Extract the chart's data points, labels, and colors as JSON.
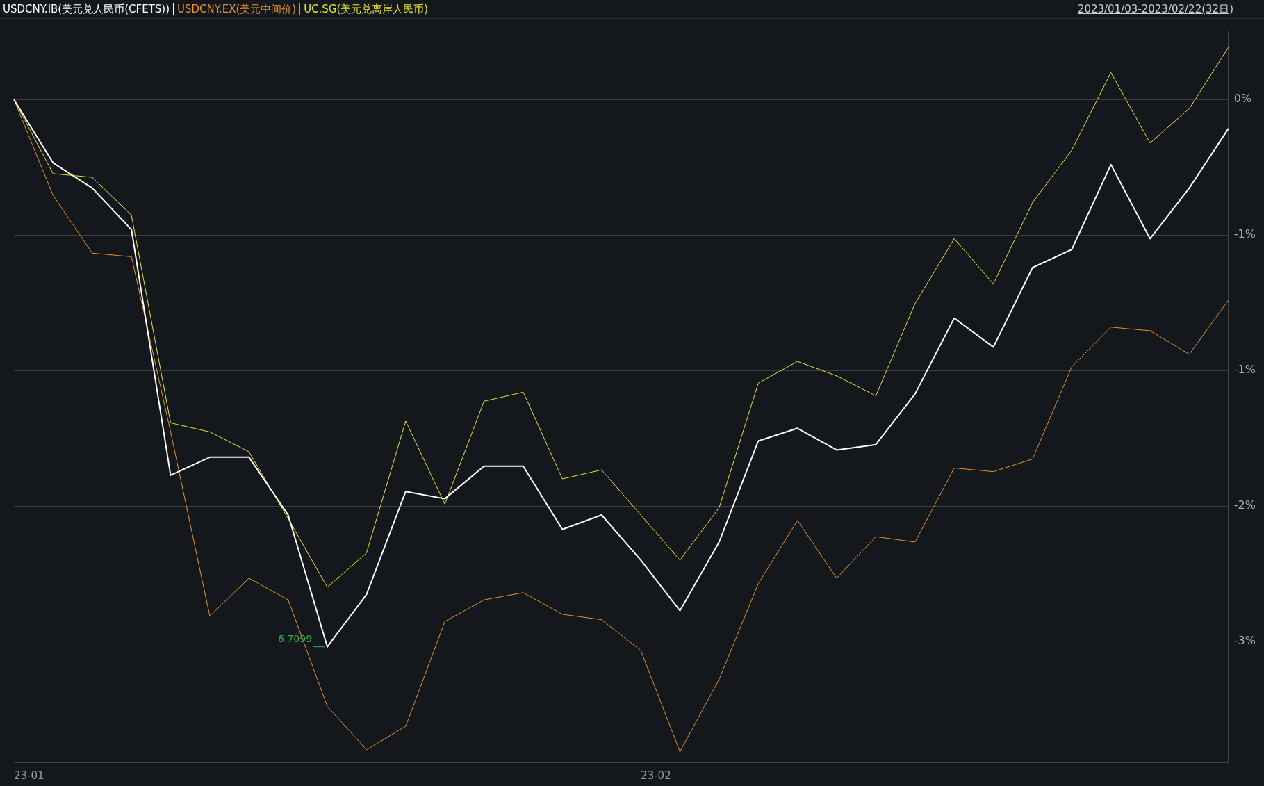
{
  "chart_data": {
    "type": "line",
    "subtitle": "2023/01/03-2023/02/22(32日)",
    "legend": "top left",
    "grid": "y",
    "marker": "none",
    "line_style": "solid",
    "categories": [
      "23-01",
      null,
      null,
      null,
      null,
      null,
      null,
      null,
      null,
      null,
      null,
      null,
      null,
      null,
      null,
      null,
      "23-02",
      null,
      null,
      null,
      null,
      null,
      null,
      null,
      null,
      null,
      null,
      null,
      null,
      null,
      null,
      null
    ],
    "ylim": [
      -3.67,
      0.38
    ],
    "yticks": [
      {
        "value": 0,
        "label": "0%"
      },
      {
        "value": -0.75,
        "label": "-1%"
      },
      {
        "value": -1.5,
        "label": "-1%"
      },
      {
        "value": -2.25,
        "label": "-2%"
      },
      {
        "value": -3,
        "label": "-3%"
      }
    ],
    "annotations": [
      "6.7099"
    ],
    "series": [
      {
        "name": "USDCNY.IB(美元兑人民币(CFETS))",
        "color": "#ffffff",
        "values": [
          0,
          -0.35,
          -0.49,
          -0.72,
          -2.08,
          -1.98,
          -1.98,
          -2.3,
          -3.03,
          -2.74,
          -2.17,
          -2.21,
          -2.03,
          -2.03,
          -2.38,
          -2.3,
          -2.55,
          -2.83,
          -2.45,
          -1.89,
          -1.82,
          -1.94,
          -1.91,
          -1.63,
          -1.21,
          -1.37,
          -0.93,
          -0.83,
          -0.36,
          -0.77,
          -0.49,
          -0.16
        ]
      },
      {
        "name": "USDCNY.EX(美元中间价)",
        "color": "#e8922c",
        "values": [
          0,
          -0.53,
          -0.85,
          -0.87,
          -1.84,
          -2.86,
          -2.65,
          -2.77,
          -3.36,
          -3.6,
          -3.47,
          -2.89,
          -2.77,
          -2.73,
          -2.85,
          -2.88,
          -3.05,
          -3.61,
          -3.21,
          -2.68,
          -2.33,
          -2.65,
          -2.42,
          -2.45,
          -2.04,
          -2.06,
          -1.99,
          -1.48,
          -1.26,
          -1.28,
          -1.41,
          -1.11
        ]
      },
      {
        "name": "UC.SG(美元兑离岸人民币)",
        "color": "#e6e62e",
        "values": [
          0,
          -0.41,
          -0.43,
          -0.64,
          -1.79,
          -1.84,
          -1.95,
          -2.32,
          -2.7,
          -2.51,
          -1.78,
          -2.24,
          -1.67,
          -1.62,
          -2.1,
          -2.05,
          -2.3,
          -2.55,
          -2.26,
          -1.57,
          -1.45,
          -1.53,
          -1.64,
          -1.13,
          -0.77,
          -1.02,
          -0.57,
          -0.28,
          0.15,
          -0.24,
          -0.05,
          0.29
        ]
      }
    ]
  }
}
